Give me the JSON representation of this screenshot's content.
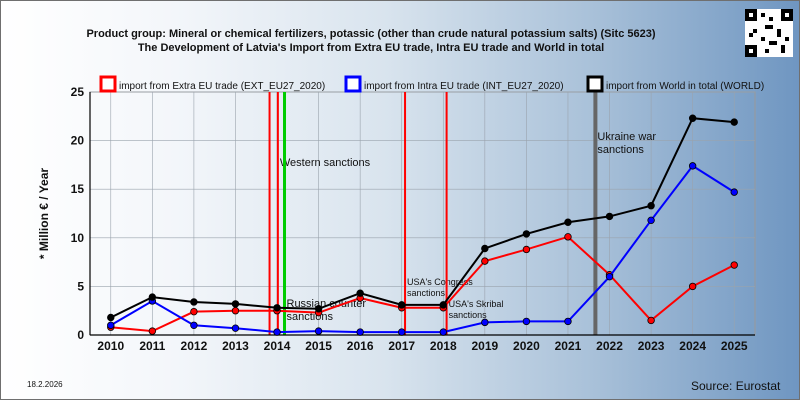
{
  "title_line1": "Product group: Mineral or chemical fertilizers, potassic (other than crude natural potassium salts) (Sitc 5623)",
  "title_line2": "The Development of Latvia's Import from Extra EU trade, Intra EU trade and World in total",
  "date": "18.2.2026",
  "source": "Source: Eurostat",
  "chart_data": {
    "type": "line",
    "ylabel": "* Million € / Year",
    "ylim": [
      0,
      25
    ],
    "yticks": [
      "0",
      "5",
      "10",
      "15",
      "20",
      "25"
    ],
    "categories": [
      "2010",
      "2011",
      "2012",
      "2013",
      "2014",
      "2015",
      "2016",
      "2017",
      "2018",
      "2019",
      "2020",
      "2021",
      "2022",
      "2023",
      "2024",
      "2025"
    ],
    "series": [
      {
        "name": "import from Extra EU trade (EXT_EU27_2020)",
        "color": "#ff0000",
        "values": [
          0.8,
          0.4,
          2.4,
          2.5,
          2.5,
          2.3,
          3.8,
          2.8,
          2.8,
          7.6,
          8.8,
          10.1,
          6.2,
          1.5,
          5.0,
          7.2
        ]
      },
      {
        "name": "import from Intra EU trade (INT_EU27_2020)",
        "color": "#0000ff",
        "values": [
          1.0,
          3.5,
          1.0,
          0.7,
          0.3,
          0.4,
          0.3,
          0.3,
          0.3,
          1.3,
          1.4,
          1.4,
          6.0,
          11.8,
          17.4,
          14.7
        ]
      },
      {
        "name": "import from World in total (WORLD)",
        "color": "#000000",
        "values": [
          1.8,
          3.9,
          3.4,
          3.2,
          2.8,
          2.7,
          4.3,
          3.1,
          3.1,
          8.9,
          10.4,
          11.6,
          12.2,
          13.3,
          22.3,
          21.9
        ]
      }
    ],
    "events": [
      {
        "x": 2013.82,
        "color": "#ff0000",
        "label": "",
        "label_lines": []
      },
      {
        "x": 2014.02,
        "color": "#ff0000",
        "label": "Western sanctions",
        "label_lines": [
          "Western sanctions"
        ]
      },
      {
        "x": 2014.18,
        "color": "#00cc00",
        "label": "Russian counter sanctions",
        "label_lines": [
          "Russian counter",
          "sanctions"
        ]
      },
      {
        "x": 2017.08,
        "color": "#ff0000",
        "label": "USA's Congress sanctions",
        "label_lines": [
          "USA's Congress",
          "sanctions"
        ]
      },
      {
        "x": 2018.08,
        "color": "#ff0000",
        "label": "USA's Skribal sanctions",
        "label_lines": [
          "USA's Skribal",
          "sanctions"
        ]
      },
      {
        "x": 2021.66,
        "color": "#666666",
        "label": "Ukraine war sanctions",
        "label_lines": [
          "Ukraine war",
          "sanctions"
        ]
      }
    ],
    "grid": true,
    "legend_position": "top"
  }
}
